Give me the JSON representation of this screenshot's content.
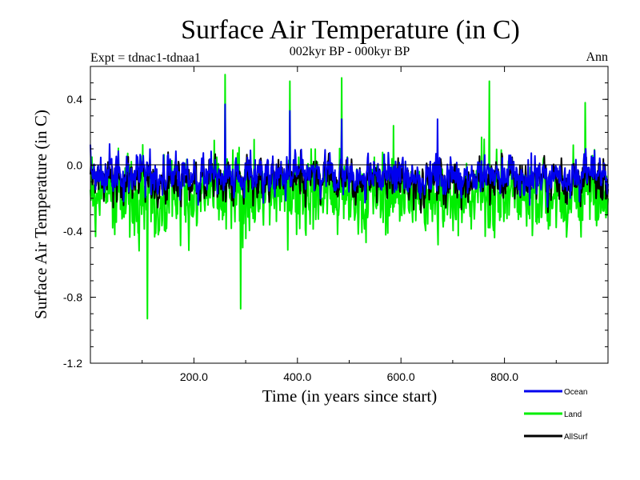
{
  "chart_data": {
    "type": "line",
    "title": "Surface Air Temperature (in C)",
    "subtitle": "002kyr BP - 000kyr BP",
    "left_note": "Expt = tdnac1-tdnaa1",
    "right_note": "Ann",
    "xlabel": "Time (in years since start)",
    "ylabel": "Surface Air Temperature (in C)",
    "xlim": [
      0,
      1000
    ],
    "ylim": [
      -1.2,
      0.6
    ],
    "x_ticks": [
      200,
      400,
      600,
      800
    ],
    "x_tick_labels": [
      "200.0",
      "400.0",
      "600.0",
      "800.0"
    ],
    "y_ticks": [
      -1.2,
      -0.8,
      -0.4,
      0.0,
      0.4
    ],
    "y_tick_labels": [
      "-1.2",
      "-0.8",
      "-0.4",
      "0.0",
      "0.4"
    ],
    "zero_line": 0.0,
    "legend_position": "bottom-right",
    "series": [
      {
        "name": "Land",
        "color": "#00ee00",
        "n_points": 1000,
        "mean": -0.18,
        "min": -0.93,
        "max": 0.55,
        "annotated_extremes": [
          {
            "x": 110,
            "y": -0.93
          },
          {
            "x": 260,
            "y": 0.55
          },
          {
            "x": 290,
            "y": -0.87
          },
          {
            "x": 385,
            "y": 0.51
          },
          {
            "x": 485,
            "y": 0.53
          },
          {
            "x": 770,
            "y": 0.51
          },
          {
            "x": 955,
            "y": 0.38
          }
        ]
      },
      {
        "name": "Ocean",
        "color": "#0000ee",
        "n_points": 1000,
        "mean": -0.06,
        "min": -0.35,
        "max": 0.37,
        "annotated_extremes": [
          {
            "x": 260,
            "y": 0.37
          },
          {
            "x": 385,
            "y": 0.33
          },
          {
            "x": 485,
            "y": 0.28
          },
          {
            "x": 670,
            "y": 0.28
          }
        ]
      },
      {
        "name": "AllSurf",
        "color": "#000000",
        "n_points": 1000,
        "mean": -0.09,
        "min": -0.4,
        "max": 0.35
      }
    ]
  }
}
